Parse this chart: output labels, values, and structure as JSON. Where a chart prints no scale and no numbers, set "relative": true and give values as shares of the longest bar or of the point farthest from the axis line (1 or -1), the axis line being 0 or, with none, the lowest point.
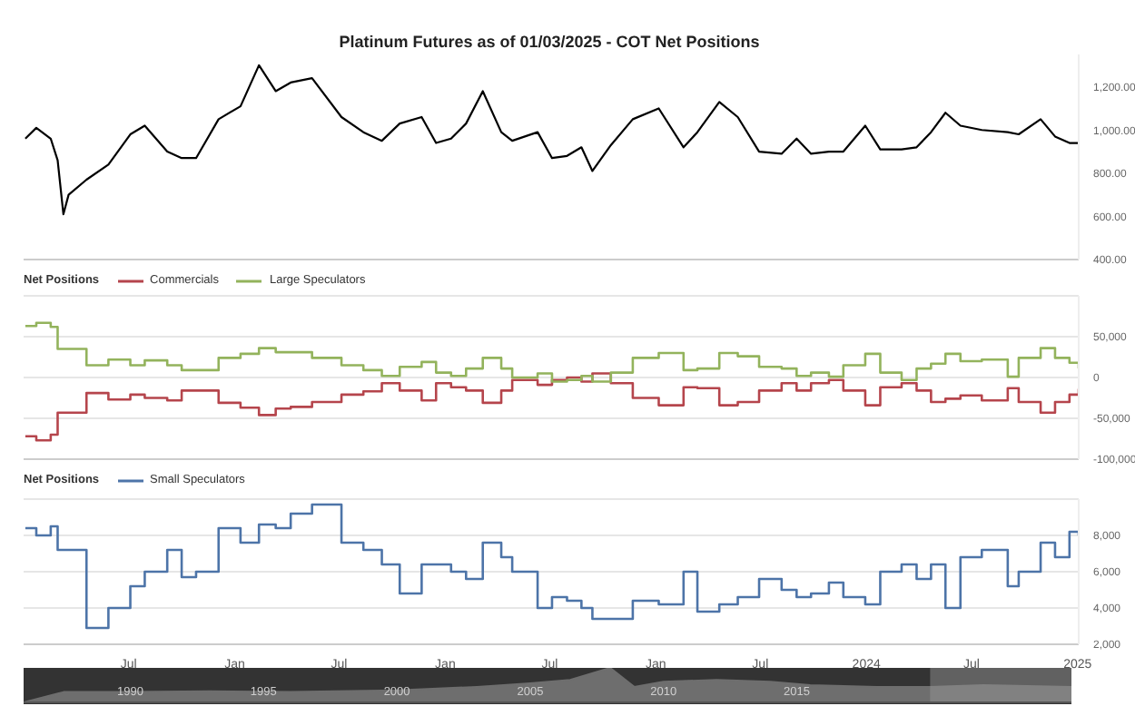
{
  "chart_data": [
    {
      "type": "line",
      "title": "Platinum Futures as of 01/03/2025 - COT Net Positions",
      "color": "#000000",
      "tick_labels": "y",
      "xlim": [
        "2020-01-01",
        "2025-01-03"
      ],
      "ylim": [
        400,
        1350
      ],
      "yticks": [
        {
          "value": 400,
          "label": "400.00"
        },
        {
          "value": 600,
          "label": "600.00"
        },
        {
          "value": 800,
          "label": "800.00"
        },
        {
          "value": 1000,
          "label": "1,000.00"
        },
        {
          "value": 1200,
          "label": "1,200.00"
        }
      ],
      "x": [
        "2020-01-04",
        "2020-01-23",
        "2020-02-17",
        "2020-02-29",
        "2020-03-10",
        "2020-03-19",
        "2020-04-19",
        "2020-05-27",
        "2020-07-04",
        "2020-07-29",
        "2020-09-06",
        "2020-10-01",
        "2020-10-26",
        "2020-12-04",
        "2021-01-11",
        "2021-02-12",
        "2021-03-13",
        "2021-04-08",
        "2021-05-15",
        "2021-07-05",
        "2021-08-12",
        "2021-09-13",
        "2021-10-14",
        "2021-11-21",
        "2021-12-16",
        "2022-01-11",
        "2022-02-06",
        "2022-03-07",
        "2022-04-08",
        "2022-04-27",
        "2022-06-10",
        "2022-07-05",
        "2022-07-31",
        "2022-08-25",
        "2022-09-13",
        "2022-10-15",
        "2022-11-22",
        "2023-01-06",
        "2023-02-18",
        "2023-03-14",
        "2023-04-21",
        "2023-05-23",
        "2023-06-29",
        "2023-08-07",
        "2023-09-02",
        "2023-09-27",
        "2023-10-28",
        "2023-11-22",
        "2023-12-30",
        "2024-01-25",
        "2024-03-02",
        "2024-03-28",
        "2024-04-22",
        "2024-05-17",
        "2024-06-12",
        "2024-07-19",
        "2024-09-02",
        "2024-09-21",
        "2024-10-29",
        "2024-11-23",
        "2024-12-18",
        "2025-01-03"
      ],
      "values": [
        960,
        1010,
        960,
        860,
        610,
        700,
        770,
        840,
        980,
        1020,
        900,
        870,
        870,
        1050,
        1110,
        1300,
        1180,
        1220,
        1240,
        1060,
        990,
        950,
        1030,
        1060,
        940,
        960,
        1030,
        1180,
        990,
        950,
        990,
        870,
        880,
        920,
        810,
        930,
        1050,
        1100,
        920,
        990,
        1130,
        1060,
        900,
        890,
        960,
        890,
        900,
        900,
        1020,
        910,
        910,
        920,
        990,
        1080,
        1020,
        1000,
        990,
        980,
        1050,
        970,
        940,
        940
      ]
    },
    {
      "type": "step",
      "legend": "top left",
      "legend_title": "Net Positions",
      "grid": "y",
      "tick_labels": "y",
      "xlim": [
        "2020-01-01",
        "2025-01-03"
      ],
      "ylim": [
        -100000,
        100000
      ],
      "yticks": [
        {
          "value": -100000,
          "label": "-100,000"
        },
        {
          "value": -50000,
          "label": "-50,000"
        },
        0,
        {
          "value": 50000,
          "label": "50,000"
        },
        {
          "value": 100000,
          "label": null
        }
      ],
      "x": [
        "2020-01-04",
        "2020-01-23",
        "2020-02-17",
        "2020-02-29",
        "2020-04-19",
        "2020-05-27",
        "2020-07-04",
        "2020-07-29",
        "2020-09-06",
        "2020-10-01",
        "2020-10-26",
        "2020-12-04",
        "2021-01-11",
        "2021-02-12",
        "2021-03-13",
        "2021-04-08",
        "2021-05-15",
        "2021-07-05",
        "2021-08-12",
        "2021-09-13",
        "2021-10-14",
        "2021-11-21",
        "2021-12-16",
        "2022-01-11",
        "2022-02-06",
        "2022-03-07",
        "2022-04-08",
        "2022-04-27",
        "2022-06-10",
        "2022-07-05",
        "2022-07-31",
        "2022-08-25",
        "2022-09-13",
        "2022-10-15",
        "2022-11-22",
        "2023-01-06",
        "2023-02-18",
        "2023-03-14",
        "2023-04-21",
        "2023-05-23",
        "2023-06-29",
        "2023-08-07",
        "2023-09-02",
        "2023-09-27",
        "2023-10-28",
        "2023-11-22",
        "2023-12-30",
        "2024-01-25",
        "2024-03-02",
        "2024-03-28",
        "2024-04-22",
        "2024-05-17",
        "2024-06-12",
        "2024-07-19",
        "2024-09-02",
        "2024-09-21",
        "2024-10-29",
        "2024-11-23",
        "2024-12-18",
        "2025-01-03"
      ],
      "series": [
        {
          "name": "Commercials",
          "color": "#b5454c",
          "values": [
            -72000,
            -77000,
            -70000,
            -43000,
            -19000,
            -27000,
            -21000,
            -25000,
            -28000,
            -16000,
            -16000,
            -31000,
            -37000,
            -46000,
            -38000,
            -36000,
            -30000,
            -21000,
            -17000,
            -7000,
            -16000,
            -28000,
            -7000,
            -12000,
            -16000,
            -31000,
            -16000,
            -3000,
            -9000,
            -3000,
            0,
            -5000,
            5000,
            -7000,
            -25000,
            -34000,
            -12000,
            -13000,
            -34000,
            -30000,
            -16000,
            -7000,
            -16000,
            -7000,
            -3000,
            -16000,
            -34000,
            -12000,
            -7000,
            -16000,
            -30000,
            -26000,
            -22000,
            -28000,
            -13000,
            -30000,
            -43000,
            -30000,
            -21000,
            -14000
          ]
        },
        {
          "name": "Large Speculators",
          "color": "#93b35c",
          "values": [
            63000,
            67000,
            62000,
            35000,
            15000,
            22000,
            15000,
            21000,
            15000,
            9000,
            9000,
            24000,
            29000,
            36000,
            31000,
            31000,
            24000,
            15000,
            9000,
            2000,
            13000,
            19000,
            6000,
            2000,
            11000,
            24000,
            11000,
            0,
            5000,
            -5000,
            -3000,
            2000,
            -5000,
            6000,
            24000,
            30000,
            9000,
            11000,
            30000,
            26000,
            13000,
            11000,
            2000,
            6000,
            1000,
            15000,
            29000,
            6000,
            -3000,
            11000,
            17000,
            29000,
            20000,
            22000,
            1000,
            24000,
            36000,
            24000,
            18000,
            11000
          ]
        }
      ]
    },
    {
      "type": "step",
      "legend": "top left",
      "legend_title": "Net Positions",
      "grid": "y",
      "xlim": [
        "2020-01-01",
        "2025-01-03"
      ],
      "xticks": [
        {
          "value": "2020-07-01",
          "label": "Jul"
        },
        {
          "value": "2021-01-01",
          "label": "Jan"
        },
        {
          "value": "2021-07-01",
          "label": "Jul"
        },
        {
          "value": "2022-01-01",
          "label": "Jan"
        },
        {
          "value": "2022-07-01",
          "label": "Jul"
        },
        {
          "value": "2023-01-01",
          "label": "Jan"
        },
        {
          "value": "2023-07-01",
          "label": "Jul"
        },
        {
          "value": "2024-01-01",
          "label": "2024"
        },
        {
          "value": "2024-07-01",
          "label": "Jul"
        },
        {
          "value": "2025-01-01",
          "label": "2025"
        }
      ],
      "ylim": [
        2000,
        10000
      ],
      "yticks": [
        {
          "value": 2000,
          "label": "2,000"
        },
        {
          "value": 4000,
          "label": "4,000"
        },
        {
          "value": 6000,
          "label": "6,000"
        },
        {
          "value": 8000,
          "label": "8,000"
        },
        {
          "value": 10000,
          "label": null
        }
      ],
      "x": [
        "2020-01-04",
        "2020-01-23",
        "2020-02-17",
        "2020-02-29",
        "2020-04-19",
        "2020-05-27",
        "2020-07-04",
        "2020-07-29",
        "2020-09-06",
        "2020-10-01",
        "2020-10-26",
        "2020-12-04",
        "2021-01-11",
        "2021-02-12",
        "2021-03-13",
        "2021-04-08",
        "2021-05-15",
        "2021-07-05",
        "2021-08-12",
        "2021-09-13",
        "2021-10-14",
        "2021-11-21",
        "2021-12-16",
        "2022-01-11",
        "2022-02-06",
        "2022-03-07",
        "2022-04-08",
        "2022-04-27",
        "2022-06-10",
        "2022-07-05",
        "2022-07-31",
        "2022-08-25",
        "2022-09-13",
        "2022-10-15",
        "2022-11-22",
        "2023-01-06",
        "2023-02-18",
        "2023-03-14",
        "2023-04-21",
        "2023-05-23",
        "2023-06-29",
        "2023-08-07",
        "2023-09-02",
        "2023-09-27",
        "2023-10-28",
        "2023-11-22",
        "2023-12-30",
        "2024-01-25",
        "2024-03-02",
        "2024-03-28",
        "2024-04-22",
        "2024-05-17",
        "2024-06-12",
        "2024-07-19",
        "2024-09-02",
        "2024-09-21",
        "2024-10-29",
        "2024-11-23",
        "2024-12-18",
        "2025-01-03"
      ],
      "series": [
        {
          "name": "Small Speculators",
          "color": "#4d74a8",
          "values": [
            8400,
            8000,
            8500,
            7200,
            2900,
            4000,
            5200,
            6000,
            7200,
            5700,
            6000,
            8400,
            7600,
            8600,
            8400,
            9200,
            9700,
            7600,
            7200,
            6400,
            4800,
            6400,
            6400,
            6000,
            5600,
            7600,
            6800,
            6000,
            4000,
            4600,
            4400,
            4000,
            3400,
            3400,
            4400,
            4200,
            6000,
            3800,
            4200,
            4600,
            5600,
            5000,
            4600,
            4800,
            5400,
            4600,
            4200,
            6000,
            6400,
            5600,
            6400,
            4000,
            6800,
            7200,
            5200,
            6000,
            7600,
            6800,
            8200,
            8000
          ]
        }
      ]
    },
    {
      "type": "area",
      "relative": true,
      "tick_labels": "x",
      "color": "#6e6e6e",
      "xlim": [
        1986,
        2025.3
      ],
      "xticks": [
        1990,
        1995,
        2000,
        2005,
        2010,
        2015
      ],
      "bands": [
        {
          "axis": "x",
          "from": 2020,
          "to": 2025.3,
          "color": "#9a9a9a"
        }
      ],
      "x": [
        1986,
        1987.5,
        1990,
        1993,
        1996,
        2000,
        2003,
        2005,
        2006.5,
        2008,
        2008.9,
        2010,
        2012,
        2014,
        2015.5,
        2018,
        2020,
        2022,
        2025.3
      ],
      "values": [
        0,
        0.3,
        0.3,
        0.32,
        0.3,
        0.35,
        0.45,
        0.55,
        0.65,
        1,
        0.45,
        0.6,
        0.65,
        0.6,
        0.5,
        0.45,
        0.45,
        0.5,
        0.45
      ]
    }
  ]
}
